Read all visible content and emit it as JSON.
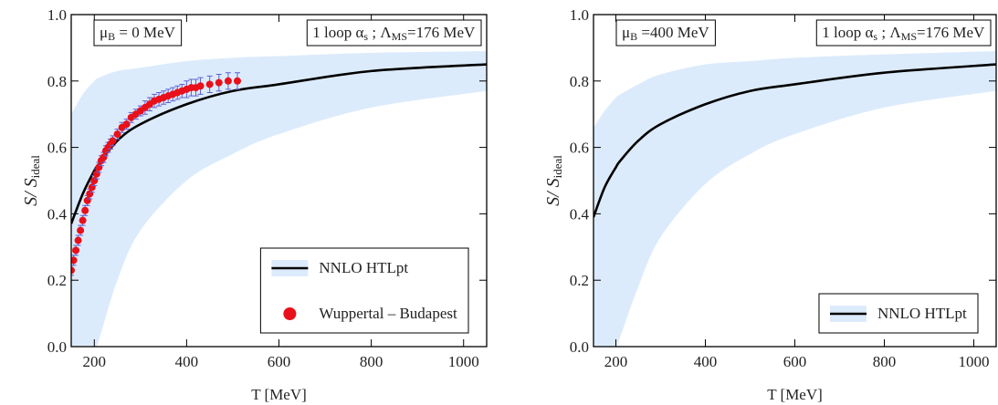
{
  "chart_data": [
    {
      "type": "line",
      "ylabel": [
        {
          "text": "S/ S"
        },
        {
          "sub": "ideal"
        }
      ],
      "xlabel": "T [MeV]",
      "annotations": [
        [
          {
            "text": "μ"
          },
          {
            "sub": "B"
          },
          {
            "text": " = 0  MeV"
          }
        ],
        [
          {
            "text": "1  loop  α"
          },
          {
            "sub": "s"
          },
          {
            "text": " ;  Λ"
          },
          {
            "sub": "MS"
          },
          {
            "text": "=176  MeV"
          }
        ]
      ],
      "xlim": [
        150,
        1050
      ],
      "xticks": [
        200,
        400,
        600,
        800,
        1000
      ],
      "ylim": [
        0,
        1
      ],
      "yticks": [
        {
          "value": 0,
          "label": "0.0"
        },
        0.2,
        0.4,
        0.6,
        0.8,
        {
          "value": 1,
          "label": "1.0"
        }
      ],
      "legend": "lower right",
      "x": [
        150,
        175,
        200,
        210,
        250,
        300,
        400,
        500,
        600,
        800,
        1050
      ],
      "series": [
        {
          "name": "NNLO HTLpt",
          "color": "#000000",
          "band_color": "#dcebfb",
          "values": [
            0.37,
            0.46,
            0.53,
            0.55,
            0.62,
            0.67,
            0.73,
            0.77,
            0.79,
            0.83,
            0.85
          ],
          "band_upper": [
            0.7,
            0.76,
            0.8,
            0.81,
            0.83,
            0.84,
            0.86,
            0.87,
            0.875,
            0.885,
            0.89
          ],
          "band_lower": [
            0,
            0,
            0,
            0.02,
            0.2,
            0.35,
            0.5,
            0.58,
            0.64,
            0.72,
            0.77
          ]
        }
      ],
      "points": {
        "name": "Wuppertal – Budapest",
        "color": "#e8101a",
        "error_color": "#6060d0",
        "x": [
          150,
          155,
          160,
          165,
          170,
          175,
          180,
          185,
          190,
          195,
          200,
          205,
          210,
          215,
          220,
          225,
          230,
          235,
          240,
          250,
          260,
          270,
          280,
          290,
          300,
          310,
          320,
          330,
          340,
          350,
          360,
          370,
          380,
          390,
          400,
          410,
          420,
          430,
          450,
          470,
          490,
          510
        ],
        "values": [
          0.23,
          0.26,
          0.29,
          0.32,
          0.35,
          0.38,
          0.41,
          0.44,
          0.46,
          0.48,
          0.5,
          0.52,
          0.54,
          0.56,
          0.57,
          0.59,
          0.6,
          0.61,
          0.62,
          0.64,
          0.66,
          0.67,
          0.69,
          0.7,
          0.71,
          0.72,
          0.73,
          0.74,
          0.745,
          0.75,
          0.755,
          0.76,
          0.765,
          0.77,
          0.775,
          0.78,
          0.78,
          0.785,
          0.79,
          0.795,
          0.8,
          0.8
        ],
        "errors": [
          0.015,
          0.015,
          0.015,
          0.015,
          0.015,
          0.015,
          0.015,
          0.015,
          0.015,
          0.015,
          0.015,
          0.015,
          0.015,
          0.015,
          0.015,
          0.015,
          0.015,
          0.015,
          0.015,
          0.015,
          0.015,
          0.015,
          0.015,
          0.015,
          0.015,
          0.02,
          0.02,
          0.02,
          0.02,
          0.02,
          0.02,
          0.02,
          0.02,
          0.02,
          0.025,
          0.025,
          0.025,
          0.025,
          0.025,
          0.025,
          0.025,
          0.025
        ]
      }
    },
    {
      "type": "line",
      "ylabel": [
        {
          "text": "S/ S"
        },
        {
          "sub": "ideal"
        }
      ],
      "xlabel": "T [MeV]",
      "annotations": [
        [
          {
            "text": "μ"
          },
          {
            "sub": "B"
          },
          {
            "text": " =400 MeV"
          }
        ],
        [
          {
            "text": "1  loop  α"
          },
          {
            "sub": "s"
          },
          {
            "text": " ;  Λ"
          },
          {
            "sub": "MS"
          },
          {
            "text": "=176  MeV"
          }
        ]
      ],
      "xlim": [
        150,
        1050
      ],
      "xticks": [
        200,
        400,
        600,
        800,
        1000
      ],
      "ylim": [
        0,
        1
      ],
      "yticks": [
        {
          "value": 0,
          "label": "0.0"
        },
        0.2,
        0.4,
        0.6,
        0.8,
        {
          "value": 1,
          "label": "1.0"
        }
      ],
      "legend": "lower right",
      "x": [
        150,
        175,
        200,
        210,
        250,
        300,
        400,
        500,
        600,
        800,
        1050
      ],
      "series": [
        {
          "name": "NNLO HTLpt",
          "color": "#000000",
          "band_color": "#dcebfb",
          "values": [
            0.39,
            0.48,
            0.54,
            0.56,
            0.62,
            0.67,
            0.73,
            0.77,
            0.79,
            0.825,
            0.85
          ],
          "band_upper": [
            0.66,
            0.71,
            0.75,
            0.76,
            0.79,
            0.82,
            0.85,
            0.86,
            0.87,
            0.88,
            0.89
          ],
          "band_lower": [
            0,
            0,
            0,
            0.03,
            0.18,
            0.33,
            0.49,
            0.58,
            0.64,
            0.72,
            0.77
          ]
        }
      ]
    }
  ]
}
